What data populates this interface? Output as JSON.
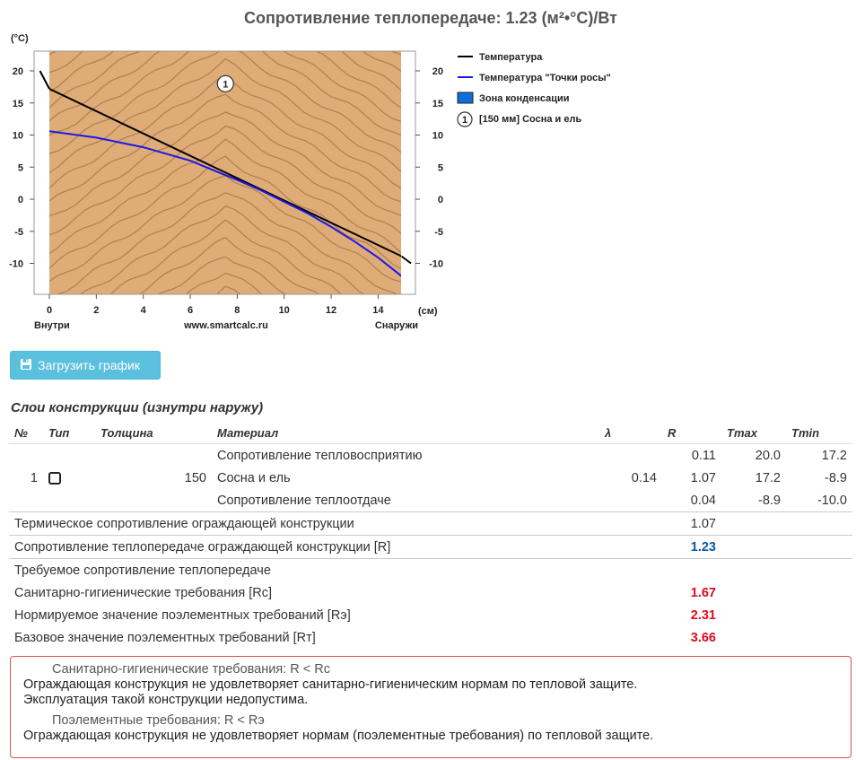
{
  "page_title": "Сопротивление теплопередаче: 1.23 (м²•°С)/Вт",
  "chart_data": {
    "type": "line",
    "title": "Сопротивление теплопередаче: 1.23 (м²•°С)/Вт",
    "y_unit": "(°С)",
    "x_unit": "(см)",
    "x_label_left": "Внутри",
    "x_label_center": "www.smartcalc.ru",
    "x_label_right": "Снаружи",
    "xlim": [
      -0.5,
      15.5
    ],
    "ylim": [
      -15,
      22
    ],
    "x_ticks": [
      0,
      2,
      4,
      6,
      8,
      10,
      12,
      14
    ],
    "y_ticks": [
      20,
      15,
      10,
      5,
      0,
      -5,
      -10
    ],
    "layer_region": [
      0,
      15
    ],
    "layer_marker": "1",
    "layer_marker_pos": [
      7.5,
      18
    ],
    "series": [
      {
        "name": "Температура",
        "color": "#000000",
        "points": [
          [
            -0.4,
            20.0
          ],
          [
            0,
            17.2
          ],
          [
            15,
            -8.9
          ],
          [
            15.4,
            -10.0
          ]
        ]
      },
      {
        "name": "Температура \"Точки росы\"",
        "color": "#1a1ae6",
        "points": [
          [
            0,
            10.6
          ],
          [
            2,
            9.6
          ],
          [
            4,
            8.1
          ],
          [
            6,
            6.0
          ],
          [
            8,
            3.0
          ],
          [
            9,
            1.4
          ],
          [
            10,
            -0.4
          ],
          [
            11,
            -2.2
          ],
          [
            12,
            -4.3
          ],
          [
            13,
            -6.6
          ],
          [
            14,
            -9.1
          ],
          [
            15,
            -12.0
          ]
        ]
      }
    ],
    "legend": [
      {
        "label": "Температура",
        "kind": "line",
        "color": "#000000"
      },
      {
        "label": "Температура \"Точки росы\"",
        "kind": "line",
        "color": "#1a1ae6"
      },
      {
        "label": "Зона конденсации",
        "kind": "box",
        "color": "#0d6fd6"
      },
      {
        "label": "[150 мм] Сосна и ель",
        "kind": "marker",
        "marker": "1"
      }
    ],
    "legend_position": "right",
    "background_colors": {
      "wood": "#dfac78",
      "grain": "#a87a4c"
    }
  },
  "download_button": {
    "label": "Загрузить график",
    "icon": "save-chart-icon"
  },
  "section_title": "Слои конструкции (изнутри наружу)",
  "table": {
    "headers": [
      "№",
      "Тип",
      "Толщина",
      "Материал",
      "λ",
      "R",
      "Tmax",
      "Tmin"
    ],
    "rows": [
      {
        "material": "Сопротивление тепловосприятию",
        "r": "0.11",
        "tmax": "20.0",
        "tmin": "17.2"
      },
      {
        "num": "1",
        "icon": "layer-type-icon",
        "thickness": "150",
        "material": "Сосна и ель",
        "lambda": "0.14",
        "r": "1.07",
        "tmax": "17.2",
        "tmin": "-8.9"
      },
      {
        "material": "Сопротивление теплоотдаче",
        "r": "0.04",
        "tmax": "-8.9",
        "tmin": "-10.0"
      }
    ],
    "thermal_resistance": {
      "label": "Термическое сопротивление ограждающей конструкции",
      "value": "1.07"
    },
    "heat_transfer_resistance": {
      "label": "Сопротивление теплопередаче ограждающей конструкции [R]",
      "value": "1.23"
    },
    "required_title": "Требуемое сопротивление теплопередаче",
    "requirements": [
      {
        "label": "Санитарно-гигиенические требования [Rс]",
        "value": "1.67"
      },
      {
        "label": "Нормируемое значение поэлементных требований [Rэ]",
        "value": "2.31"
      },
      {
        "label": "Базовое значение поэлементных требований [Rт]",
        "value": "3.66"
      }
    ]
  },
  "alert": {
    "sanitary_title": "Санитарно-гигиенические требования: R < Rс",
    "sanitary_line1": "Ограждающая конструкция не удовлетворяет санитарно-гигиеническим нормам по тепловой защите.",
    "sanitary_line2": "Эксплуатация такой конструкции недопустима.",
    "element_title": "Поэлементные требования: R < Rэ",
    "element_line1": "Ограждающая конструкция не удовлетворяет нормам (поэлементные требования) по тепловой защите."
  }
}
